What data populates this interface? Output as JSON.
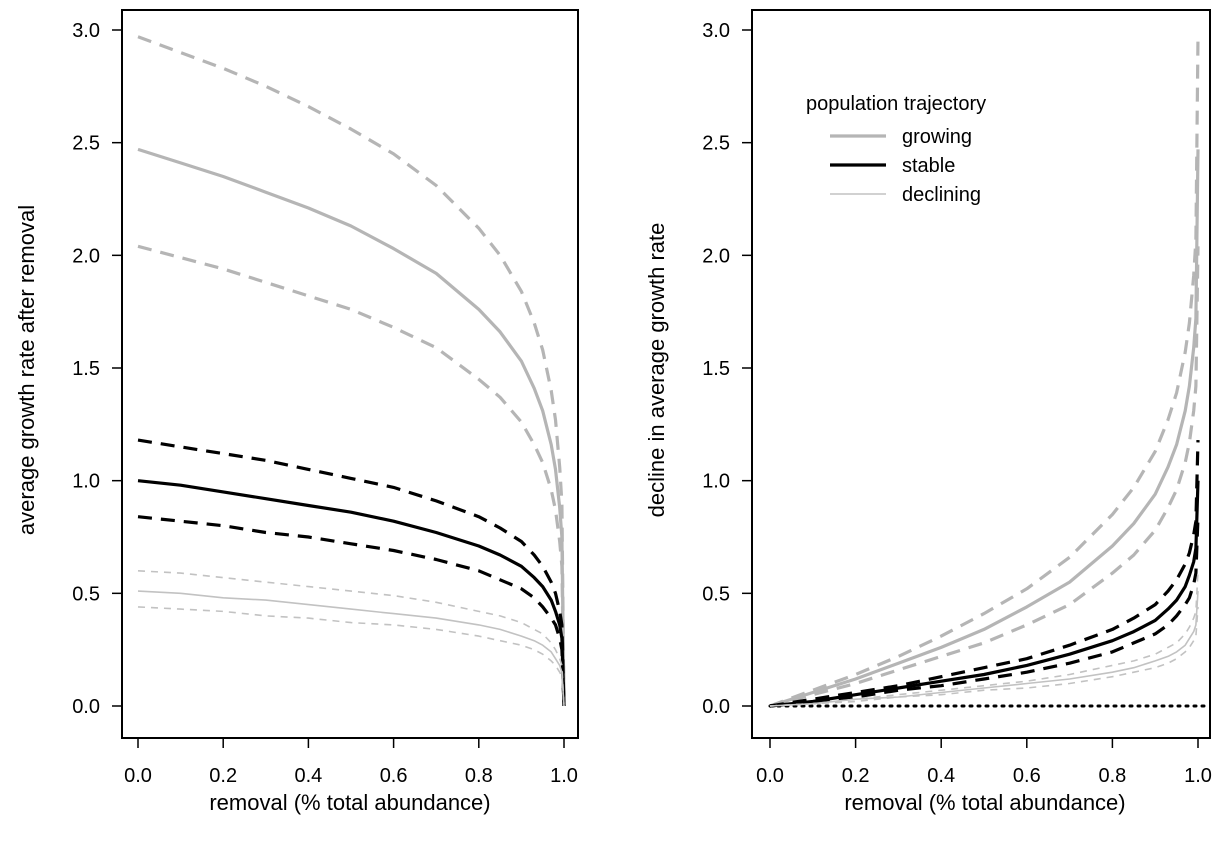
{
  "chart_data": [
    {
      "type": "line",
      "xlabel": "removal (% total abundance)",
      "ylabel": "average growth rate after removal",
      "xlim": [
        0.0,
        1.0
      ],
      "ylim": [
        0.0,
        3.0
      ],
      "xticks": [
        "0.0",
        "0.2",
        "0.4",
        "0.6",
        "0.8",
        "1.0"
      ],
      "yticks": [
        "0.0",
        "0.5",
        "1.0",
        "1.5",
        "2.0",
        "2.5",
        "3.0"
      ],
      "grid": false,
      "x": [
        0,
        0.1,
        0.2,
        0.3,
        0.4,
        0.5,
        0.6,
        0.7,
        0.8,
        0.85,
        0.9,
        0.93,
        0.95,
        0.97,
        0.98,
        0.99,
        0.995,
        1.0
      ],
      "series": [
        {
          "name": "growing",
          "color": "#b5b5b5",
          "dash": "solid",
          "width": 3.2,
          "values": [
            2.47,
            2.41,
            2.35,
            2.28,
            2.21,
            2.13,
            2.03,
            1.92,
            1.76,
            1.66,
            1.53,
            1.41,
            1.31,
            1.16,
            1.05,
            0.88,
            0.75,
            0.0
          ]
        },
        {
          "name": "growing upper",
          "color": "#b5b5b5",
          "dash": "dashed",
          "width": 3.2,
          "values": [
            2.97,
            2.9,
            2.83,
            2.75,
            2.66,
            2.56,
            2.45,
            2.31,
            2.12,
            2.0,
            1.84,
            1.7,
            1.58,
            1.4,
            1.27,
            1.06,
            0.9,
            0.0
          ]
        },
        {
          "name": "growing lower",
          "color": "#b5b5b5",
          "dash": "dashed",
          "width": 3.2,
          "values": [
            2.04,
            1.99,
            1.94,
            1.88,
            1.82,
            1.76,
            1.68,
            1.59,
            1.45,
            1.37,
            1.26,
            1.16,
            1.08,
            0.96,
            0.87,
            0.73,
            0.62,
            0.0
          ]
        },
        {
          "name": "stable",
          "color": "#000000",
          "dash": "solid",
          "width": 3.2,
          "values": [
            1.0,
            0.98,
            0.95,
            0.92,
            0.89,
            0.86,
            0.82,
            0.77,
            0.71,
            0.67,
            0.62,
            0.57,
            0.53,
            0.47,
            0.42,
            0.36,
            0.3,
            0.0
          ]
        },
        {
          "name": "stable upper",
          "color": "#000000",
          "dash": "dashed",
          "width": 3.2,
          "values": [
            1.18,
            1.15,
            1.12,
            1.09,
            1.05,
            1.01,
            0.97,
            0.91,
            0.84,
            0.79,
            0.73,
            0.67,
            0.62,
            0.55,
            0.5,
            0.42,
            0.36,
            0.0
          ]
        },
        {
          "name": "stable lower",
          "color": "#000000",
          "dash": "dashed",
          "width": 3.2,
          "values": [
            0.84,
            0.82,
            0.8,
            0.77,
            0.75,
            0.72,
            0.69,
            0.65,
            0.6,
            0.56,
            0.52,
            0.48,
            0.44,
            0.39,
            0.36,
            0.3,
            0.25,
            0.0
          ]
        },
        {
          "name": "declining",
          "color": "#c2c2c2",
          "dash": "solid",
          "width": 1.6,
          "values": [
            0.51,
            0.5,
            0.48,
            0.47,
            0.45,
            0.43,
            0.41,
            0.39,
            0.36,
            0.34,
            0.31,
            0.29,
            0.27,
            0.24,
            0.21,
            0.18,
            0.15,
            0.0
          ]
        },
        {
          "name": "declining upper",
          "color": "#c2c2c2",
          "dash": "dashed",
          "width": 1.6,
          "values": [
            0.6,
            0.59,
            0.57,
            0.55,
            0.53,
            0.51,
            0.49,
            0.46,
            0.42,
            0.4,
            0.37,
            0.34,
            0.32,
            0.28,
            0.25,
            0.21,
            0.18,
            0.0
          ]
        },
        {
          "name": "declining lower",
          "color": "#c2c2c2",
          "dash": "dashed",
          "width": 1.6,
          "values": [
            0.44,
            0.43,
            0.42,
            0.4,
            0.39,
            0.37,
            0.36,
            0.34,
            0.31,
            0.29,
            0.27,
            0.25,
            0.23,
            0.2,
            0.18,
            0.15,
            0.13,
            0.0
          ]
        }
      ]
    },
    {
      "type": "line",
      "xlabel": "removal (% total abundance)",
      "ylabel": "decline in average growth rate",
      "xlim": [
        0.0,
        1.0
      ],
      "ylim": [
        0.0,
        3.0
      ],
      "xticks": [
        "0.0",
        "0.2",
        "0.4",
        "0.6",
        "0.8",
        "1.0"
      ],
      "yticks": [
        "0.0",
        "0.5",
        "1.0",
        "1.5",
        "2.0",
        "2.5",
        "3.0"
      ],
      "grid": false,
      "legend": {
        "title": "population trajectory",
        "placement": "top-left",
        "entries": [
          {
            "label": "growing",
            "color": "#b5b5b5",
            "width": 3.2
          },
          {
            "label": "stable",
            "color": "#000000",
            "width": 3.2
          },
          {
            "label": "declining",
            "color": "#c2c2c2",
            "width": 1.6
          }
        ]
      },
      "reference_line": {
        "y": 0.0,
        "style": "dotted",
        "color": "#000000"
      },
      "x": [
        0,
        0.1,
        0.2,
        0.3,
        0.4,
        0.5,
        0.6,
        0.7,
        0.8,
        0.85,
        0.9,
        0.93,
        0.95,
        0.97,
        0.98,
        0.99,
        0.995,
        1.0
      ],
      "series": [
        {
          "name": "growing",
          "color": "#b5b5b5",
          "dash": "solid",
          "width": 3.2,
          "values": [
            0.0,
            0.06,
            0.12,
            0.19,
            0.26,
            0.34,
            0.44,
            0.55,
            0.71,
            0.81,
            0.94,
            1.06,
            1.16,
            1.31,
            1.42,
            1.59,
            1.72,
            2.47
          ]
        },
        {
          "name": "growing upper",
          "color": "#b5b5b5",
          "dash": "dashed",
          "width": 3.2,
          "values": [
            0.0,
            0.07,
            0.14,
            0.22,
            0.31,
            0.41,
            0.52,
            0.66,
            0.85,
            0.97,
            1.13,
            1.27,
            1.39,
            1.57,
            1.7,
            1.91,
            2.07,
            2.97
          ]
        },
        {
          "name": "growing lower",
          "color": "#b5b5b5",
          "dash": "dashed",
          "width": 3.2,
          "values": [
            0.0,
            0.05,
            0.1,
            0.16,
            0.22,
            0.28,
            0.36,
            0.45,
            0.59,
            0.67,
            0.78,
            0.88,
            0.96,
            1.08,
            1.17,
            1.31,
            1.42,
            2.04
          ]
        },
        {
          "name": "stable",
          "color": "#000000",
          "dash": "solid",
          "width": 3.2,
          "values": [
            0.0,
            0.02,
            0.05,
            0.08,
            0.11,
            0.14,
            0.18,
            0.23,
            0.29,
            0.33,
            0.38,
            0.43,
            0.47,
            0.53,
            0.58,
            0.64,
            0.7,
            1.0
          ]
        },
        {
          "name": "stable upper",
          "color": "#000000",
          "dash": "dashed",
          "width": 3.2,
          "values": [
            0.0,
            0.03,
            0.06,
            0.09,
            0.13,
            0.17,
            0.21,
            0.27,
            0.34,
            0.39,
            0.45,
            0.51,
            0.56,
            0.63,
            0.68,
            0.76,
            0.82,
            1.18
          ]
        },
        {
          "name": "stable lower",
          "color": "#000000",
          "dash": "dashed",
          "width": 3.2,
          "values": [
            0.0,
            0.02,
            0.04,
            0.07,
            0.09,
            0.12,
            0.15,
            0.19,
            0.24,
            0.28,
            0.32,
            0.36,
            0.4,
            0.45,
            0.48,
            0.54,
            0.59,
            0.84
          ]
        },
        {
          "name": "declining",
          "color": "#c2c2c2",
          "dash": "solid",
          "width": 1.6,
          "values": [
            0.0,
            0.01,
            0.03,
            0.04,
            0.06,
            0.08,
            0.1,
            0.12,
            0.15,
            0.17,
            0.2,
            0.22,
            0.24,
            0.27,
            0.3,
            0.33,
            0.36,
            0.51
          ]
        },
        {
          "name": "declining upper",
          "color": "#c2c2c2",
          "dash": "dashed",
          "width": 1.6,
          "values": [
            0.0,
            0.01,
            0.03,
            0.05,
            0.07,
            0.09,
            0.11,
            0.14,
            0.18,
            0.2,
            0.23,
            0.26,
            0.28,
            0.32,
            0.35,
            0.39,
            0.42,
            0.6
          ]
        },
        {
          "name": "declining lower",
          "color": "#c2c2c2",
          "dash": "dashed",
          "width": 1.6,
          "values": [
            0.0,
            0.01,
            0.02,
            0.04,
            0.05,
            0.07,
            0.08,
            0.1,
            0.13,
            0.15,
            0.17,
            0.19,
            0.21,
            0.24,
            0.26,
            0.29,
            0.31,
            0.44
          ]
        }
      ]
    }
  ]
}
